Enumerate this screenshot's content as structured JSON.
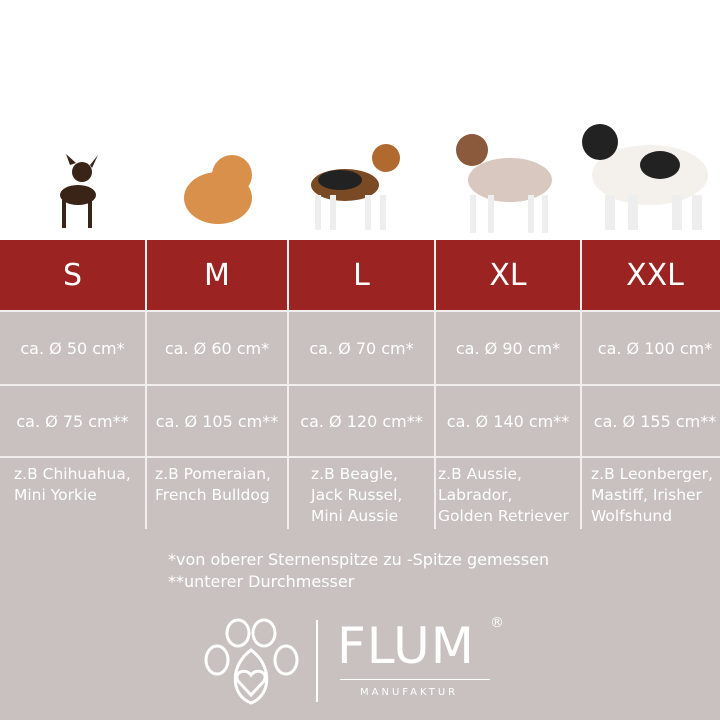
{
  "sizes": [
    "S",
    "M",
    "L",
    "XL",
    "XXL"
  ],
  "diameter_top": [
    "ca. Ø 50 cm*",
    "ca. Ø 60 cm*",
    "ca. Ø 70 cm*",
    "ca. Ø 90 cm*",
    "ca. Ø 100 cm*"
  ],
  "diameter_bottom": [
    "ca. Ø 75 cm**",
    "ca. Ø 105 cm**",
    "ca. Ø 120 cm**",
    "ca. Ø 140 cm**",
    "ca. Ø 155 cm**"
  ],
  "breeds": [
    "z.B Chihuahua,\nMini Yorkie",
    "z.B Pomeraian,\nFrench Bulldog",
    "z.B Beagle,\nJack Russel,\nMini Aussie",
    "z.B Aussie,\nLabrador,\nGolden Retriever",
    "z.B Leonberger,\nMastiff, Irisher\nWolfshund"
  ],
  "notes": [
    "*von oberer Sternenspitze zu -Spitze gemessen",
    "**unterer Durchmesser"
  ],
  "logo": {
    "brand": "FLUM",
    "sub": "MANUFAKTUR",
    "mark": "®"
  },
  "colors": {
    "header": "#9b2423",
    "cell": "#c8c1c0"
  }
}
